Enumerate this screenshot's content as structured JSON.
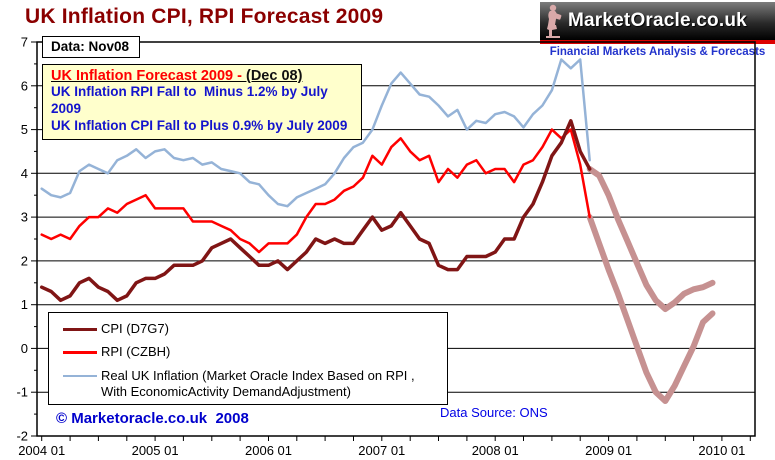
{
  "title": "UK Inflation CPI, RPI Forecast 2009",
  "logo": {
    "brand": "MarketOracle.co.uk",
    "tagline": "Financial Markets Analysis & Forecasts",
    "figure_icon": "seated-reader-statue",
    "stripe_color": "#DD0000"
  },
  "data_label": "Data: Nov08",
  "annotation": {
    "heading_red": "UK Inflation Forecast 2009 - ",
    "heading_black": "(Dec 08)",
    "line1": "UK Inflation RPI Fall to  Minus 1.2% by July 2009",
    "line2": "UK Inflation CPI Fall to Plus 0.9% by July 2009"
  },
  "legend": [
    {
      "label": "CPI (D7G7)",
      "color": "#801515",
      "thickness": 3
    },
    {
      "label": "RPI (CZBH)",
      "color": "#FF0000",
      "thickness": 3
    },
    {
      "label": "Real UK Inflation (Market Oracle Index Based on RPI , With EconomicActivity DemandAdjustment)",
      "color": "#95B3D7",
      "thickness": 2
    }
  ],
  "footer": {
    "copyright": "© Marketoracle.co.uk  2008",
    "source": "Data Source: ONS"
  },
  "colors": {
    "title": "#8B0000",
    "cpi": "#801515",
    "rpi": "#FF0000",
    "real_inflation": "#95B3D7",
    "forecast": "#C69191",
    "annotation_bg": "#FFFFCC",
    "annotation_text": "#1414CC",
    "grid": "#000000"
  },
  "chart_data": {
    "type": "line",
    "title": "UK Inflation CPI, RPI Forecast 2009",
    "xlabel": "",
    "ylabel": "",
    "ylim": [
      -2,
      7
    ],
    "y_ticks": [
      -2,
      -1,
      0,
      1,
      2,
      3,
      4,
      5,
      6,
      7
    ],
    "y_minor_step": 0.5,
    "x_tick_labels": [
      "2004 01",
      "2005 01",
      "2006 01",
      "2007 01",
      "2008 01",
      "2009 01",
      "2010 01"
    ],
    "x_major_every_months": 12,
    "x_minor_every_months": 3,
    "x_total_months": 76,
    "grid": "horizontal-only",
    "legend_position": "lower-left-inside",
    "series": [
      {
        "name": "CPI Forecast 2009",
        "color": "#C69191",
        "width": 6,
        "start_month": 58,
        "values": [
          4.1,
          3.95,
          3.5,
          2.95,
          2.45,
          1.95,
          1.45,
          1.1,
          0.9,
          1.05,
          1.25,
          1.35,
          1.4,
          1.5
        ]
      },
      {
        "name": "RPI Forecast 2009",
        "color": "#C69191",
        "width": 6,
        "start_month": 58,
        "values": [
          3.0,
          2.4,
          1.8,
          1.25,
          0.65,
          0.05,
          -0.55,
          -1.0,
          -1.2,
          -0.85,
          -0.4,
          0.05,
          0.6,
          0.8
        ]
      },
      {
        "name": "Real UK Inflation (Market Oracle Index Based on RPI , With EconomicActivity DemandAdjustment)",
        "color": "#95B3D7",
        "width": 2.5,
        "start_month": 0,
        "values": [
          3.65,
          3.5,
          3.45,
          3.55,
          4.05,
          4.2,
          4.1,
          4.0,
          4.3,
          4.4,
          4.55,
          4.35,
          4.5,
          4.55,
          4.35,
          4.3,
          4.35,
          4.2,
          4.25,
          4.1,
          4.05,
          4.0,
          3.8,
          3.75,
          3.5,
          3.3,
          3.25,
          3.45,
          3.55,
          3.65,
          3.75,
          4.0,
          4.35,
          4.6,
          4.7,
          5.0,
          5.55,
          6.05,
          6.3,
          6.05,
          5.8,
          5.75,
          5.55,
          5.3,
          5.45,
          5.0,
          5.2,
          5.15,
          5.35,
          5.4,
          5.3,
          5.05,
          5.35,
          5.55,
          5.9,
          6.6,
          6.4,
          6.6,
          4.3
        ]
      },
      {
        "name": "RPI (CZBH)",
        "color": "#FF0000",
        "width": 2.5,
        "start_month": 0,
        "values": [
          2.6,
          2.5,
          2.6,
          2.5,
          2.8,
          3.0,
          3.0,
          3.2,
          3.1,
          3.3,
          3.4,
          3.5,
          3.2,
          3.2,
          3.2,
          3.2,
          2.9,
          2.9,
          2.9,
          2.8,
          2.7,
          2.5,
          2.4,
          2.2,
          2.4,
          2.4,
          2.4,
          2.6,
          3.0,
          3.3,
          3.3,
          3.4,
          3.6,
          3.7,
          3.9,
          4.4,
          4.2,
          4.6,
          4.8,
          4.5,
          4.3,
          4.4,
          3.8,
          4.1,
          3.9,
          4.2,
          4.3,
          4.0,
          4.1,
          4.1,
          3.8,
          4.2,
          4.3,
          4.6,
          5.0,
          4.8,
          5.0,
          4.2,
          3.0
        ]
      },
      {
        "name": "CPI (D7G7)",
        "color": "#801515",
        "width": 3.5,
        "start_month": 0,
        "values": [
          1.4,
          1.3,
          1.1,
          1.2,
          1.5,
          1.6,
          1.4,
          1.3,
          1.1,
          1.2,
          1.5,
          1.6,
          1.6,
          1.7,
          1.9,
          1.9,
          1.9,
          2.0,
          2.3,
          2.4,
          2.5,
          2.3,
          2.1,
          1.9,
          1.9,
          2.0,
          1.8,
          2.0,
          2.2,
          2.5,
          2.4,
          2.5,
          2.4,
          2.4,
          2.7,
          3.0,
          2.7,
          2.8,
          3.1,
          2.8,
          2.5,
          2.4,
          1.9,
          1.8,
          1.8,
          2.1,
          2.1,
          2.1,
          2.2,
          2.5,
          2.5,
          3.0,
          3.3,
          3.8,
          4.4,
          4.7,
          5.2,
          4.5,
          4.1
        ]
      }
    ]
  }
}
